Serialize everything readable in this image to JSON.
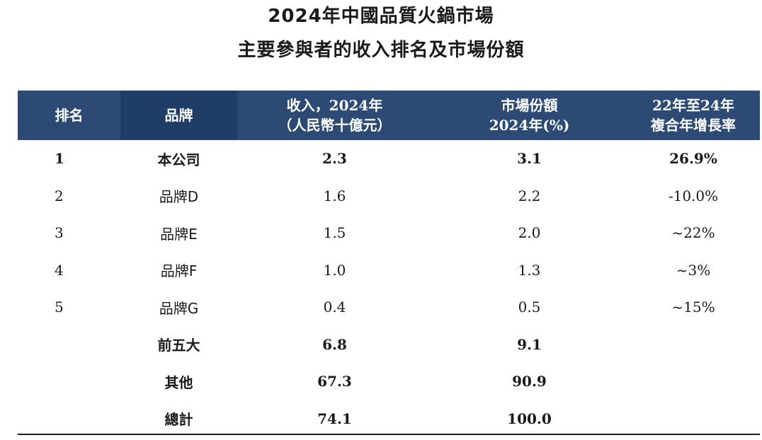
{
  "title": {
    "line1": "2024年中國品質火鍋市場",
    "line2": "主要參與者的收入排名及市場份額"
  },
  "headers": {
    "rank": "排名",
    "brand": "品牌",
    "revenue_line1": "收入，2024年",
    "revenue_line2": "（人民幣十億元）",
    "share_line1": "市場份額",
    "share_line2": "2024年(%)",
    "cagr_line1": "22年至24年",
    "cagr_line2": "複合年增長率"
  },
  "rows": [
    {
      "rank": "1",
      "brand": "本公司",
      "revenue": "2.3",
      "share": "3.1",
      "cagr": "26.9%"
    },
    {
      "rank": "2",
      "brand": "品牌D",
      "revenue": "1.6",
      "share": "2.2",
      "cagr": "-10.0%"
    },
    {
      "rank": "3",
      "brand": "品牌E",
      "revenue": "1.5",
      "share": "2.0",
      "cagr": "~22%"
    },
    {
      "rank": "4",
      "brand": "品牌F",
      "revenue": "1.0",
      "share": "1.3",
      "cagr": "~3%"
    },
    {
      "rank": "5",
      "brand": "品牌G",
      "revenue": "0.4",
      "share": "0.5",
      "cagr": "~15%"
    },
    {
      "rank": "",
      "brand": "前五大",
      "revenue": "6.8",
      "share": "9.1",
      "cagr": ""
    },
    {
      "rank": "",
      "brand": "其他",
      "revenue": "67.3",
      "share": "90.9",
      "cagr": ""
    },
    {
      "rank": "",
      "brand": "總計",
      "revenue": "74.1",
      "share": "100.0",
      "cagr": ""
    }
  ]
}
